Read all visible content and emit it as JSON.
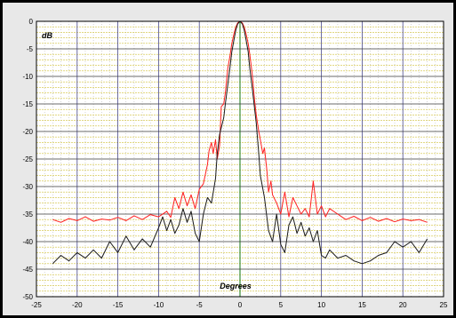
{
  "chart_data": {
    "type": "line",
    "title": "",
    "xlabel": "Degrees",
    "ylabel": "dB",
    "xlim": [
      -25,
      25
    ],
    "ylim": [
      -50,
      0
    ],
    "xticks": [
      -25,
      -20,
      -15,
      -10,
      -5,
      0,
      5,
      10,
      15,
      20,
      25
    ],
    "yticks": [
      0,
      -5,
      -10,
      -15,
      -20,
      -25,
      -30,
      -35,
      -40,
      -45,
      -50
    ],
    "grid": true,
    "colors": {
      "background": "#ffffff",
      "major_x_grid": "#4a4a8c",
      "major_y_grid": "#3a3a3a",
      "minor_x_grid": "#b9b9b9",
      "minor_y_grid": "#d2c13a",
      "zero_line": "#3a8c3a",
      "series_red": "#ff2020",
      "series_black": "#1a1a1a"
    },
    "series": [
      {
        "color": "#ff2020",
        "x": [
          -23.0,
          -22.0,
          -21.0,
          -20.0,
          -19.0,
          -18.0,
          -17.0,
          -16.0,
          -15.0,
          -14.0,
          -13.0,
          -12.0,
          -11.0,
          -10.0,
          -9.0,
          -8.5,
          -8.0,
          -7.5,
          -7.0,
          -6.5,
          -6.0,
          -5.5,
          -5.0,
          -4.5,
          -4.0,
          -3.8,
          -3.5,
          -3.3,
          -3.0,
          -2.8,
          -2.5,
          -2.3,
          -2.0,
          -1.8,
          -1.5,
          -1.2,
          -1.0,
          -0.7,
          -0.5,
          -0.3,
          0.0,
          0.3,
          0.5,
          0.7,
          1.0,
          1.2,
          1.5,
          1.8,
          2.0,
          2.3,
          2.5,
          2.8,
          3.0,
          3.3,
          3.5,
          3.8,
          4.0,
          4.5,
          5.0,
          5.5,
          6.0,
          6.5,
          7.0,
          7.5,
          8.0,
          8.5,
          9.0,
          9.5,
          10.0,
          10.5,
          11.0,
          12.0,
          13.0,
          14.0,
          15.0,
          16.0,
          17.0,
          18.0,
          19.0,
          20.0,
          21.0,
          22.0,
          23.0
        ],
        "y": [
          -36.0,
          -36.5,
          -35.8,
          -36.2,
          -35.5,
          -36.3,
          -35.9,
          -36.1,
          -35.6,
          -36.2,
          -35.3,
          -36.0,
          -35.1,
          -35.5,
          -34.5,
          -35.6,
          -32.0,
          -34.0,
          -31.0,
          -33.5,
          -31.5,
          -34.0,
          -30.5,
          -29.5,
          -26.0,
          -23.5,
          -22.0,
          -24.0,
          -21.5,
          -25.0,
          -22.5,
          -15.5,
          -15.0,
          -13.0,
          -8.5,
          -6.0,
          -4.0,
          -2.0,
          -1.0,
          -0.3,
          0.0,
          -0.3,
          -1.0,
          -2.0,
          -4.0,
          -6.0,
          -9.5,
          -14.5,
          -17.0,
          -20.0,
          -21.5,
          -24.0,
          -23.0,
          -27.0,
          -31.0,
          -29.0,
          -31.5,
          -33.0,
          -35.0,
          -31.0,
          -35.5,
          -32.0,
          -33.5,
          -35.0,
          -34.0,
          -35.5,
          -29.0,
          -35.0,
          -33.5,
          -35.5,
          -34.0,
          -35.0,
          -36.0,
          -35.4,
          -36.2,
          -35.6,
          -36.3,
          -35.8,
          -36.4,
          -35.9,
          -36.2,
          -36.0,
          -36.5
        ]
      },
      {
        "color": "#1a1a1a",
        "x": [
          -23.0,
          -22.0,
          -21.0,
          -20.0,
          -19.0,
          -18.0,
          -17.0,
          -16.0,
          -15.0,
          -14.0,
          -13.0,
          -12.0,
          -11.0,
          -10.0,
          -9.5,
          -9.0,
          -8.5,
          -8.0,
          -7.5,
          -7.0,
          -6.5,
          -6.0,
          -5.5,
          -5.0,
          -4.5,
          -4.0,
          -3.5,
          -3.0,
          -2.8,
          -2.5,
          -2.0,
          -1.8,
          -1.5,
          -1.2,
          -1.0,
          -0.7,
          -0.5,
          -0.3,
          0.0,
          0.3,
          0.5,
          0.7,
          1.0,
          1.2,
          1.5,
          1.8,
          2.0,
          2.3,
          2.5,
          3.0,
          3.5,
          4.0,
          4.5,
          5.0,
          5.5,
          6.0,
          6.5,
          7.0,
          7.5,
          8.0,
          8.5,
          9.0,
          9.5,
          10.0,
          10.5,
          11.0,
          12.0,
          13.0,
          14.0,
          15.0,
          16.0,
          17.0,
          18.0,
          19.0,
          20.0,
          21.0,
          22.0,
          23.0
        ],
        "y": [
          -44.0,
          -42.5,
          -43.5,
          -42.0,
          -43.0,
          -41.5,
          -43.0,
          -40.0,
          -42.0,
          -39.0,
          -41.5,
          -39.5,
          -41.0,
          -37.5,
          -35.5,
          -38.0,
          -36.0,
          -38.5,
          -37.0,
          -34.0,
          -36.5,
          -34.5,
          -38.5,
          -40.0,
          -35.0,
          -32.0,
          -33.0,
          -28.5,
          -24.0,
          -20.5,
          -17.5,
          -15.0,
          -11.5,
          -8.0,
          -5.5,
          -3.0,
          -1.5,
          -0.5,
          0.0,
          -0.5,
          -1.5,
          -3.0,
          -5.5,
          -8.5,
          -12.0,
          -16.0,
          -18.5,
          -24.0,
          -28.0,
          -32.0,
          -38.0,
          -40.0,
          -35.0,
          -40.5,
          -42.0,
          -37.0,
          -35.5,
          -38.5,
          -36.5,
          -39.0,
          -37.5,
          -40.0,
          -38.0,
          -42.5,
          -43.0,
          -41.5,
          -43.0,
          -42.5,
          -43.5,
          -44.0,
          -43.5,
          -42.5,
          -42.0,
          -40.0,
          -41.0,
          -40.0,
          -42.0,
          -39.5
        ]
      }
    ]
  }
}
